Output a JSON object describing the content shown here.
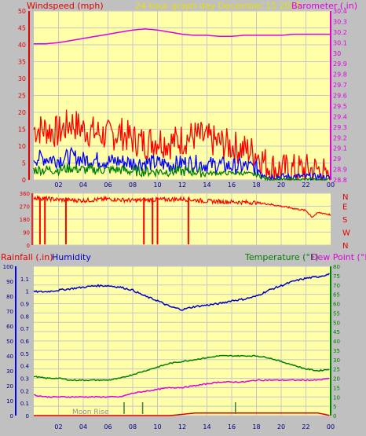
{
  "header": {
    "left": "Windspeed (mph)",
    "center": "24 hour graph day   December 15 2025",
    "right": "Barometer (.in)"
  },
  "colors": {
    "background": "#c0c0c0",
    "plot": "#ffffa8",
    "grid": "#c8c8c8",
    "wind": "#ff0000",
    "wind_avg": "#0000ff",
    "wind_low": "#008000",
    "barometer": "#e000e0",
    "wind_dir": "#ff0000",
    "humidity": "#0000c8",
    "temperature": "#008000",
    "dew_point": "#e000e0",
    "rainfall": "#e00000",
    "solar_ticks": "#408040",
    "header_center": "#e8e000"
  },
  "x_ticks": [
    "02",
    "04",
    "06",
    "08",
    "10",
    "12",
    "14",
    "16",
    "18",
    "20",
    "22",
    "00"
  ],
  "chart_data": [
    {
      "type": "line",
      "name": "wind-barometer",
      "left_axis": {
        "label": "Windspeed (mph)",
        "ticks": [
          "0",
          "5",
          "10",
          "15",
          "20",
          "25",
          "30",
          "35",
          "40",
          "45",
          "50"
        ],
        "range": [
          0,
          50
        ]
      },
      "right_axis": {
        "label": "Barometer (.in)",
        "ticks": [
          "28.8",
          "28.9",
          "29",
          "29.1",
          "29.2",
          "29.3",
          "29.4",
          "29.5",
          "29.6",
          "29.7",
          "29.8",
          "29.9",
          "30",
          "30.1",
          "30.2",
          "30.3",
          "30.4"
        ],
        "range": [
          28.8,
          30.4
        ]
      },
      "x_hours": [
        1,
        2,
        3,
        4,
        5,
        6,
        7,
        8,
        9,
        10,
        11,
        12,
        13,
        14,
        15,
        16,
        17,
        18,
        19,
        20,
        21,
        22,
        23,
        24
      ],
      "series": [
        {
          "key": "gust",
          "axis": "left",
          "values": [
            15,
            14,
            17,
            15,
            14,
            13,
            14,
            12,
            11,
            12,
            11,
            12,
            13,
            12,
            11,
            10,
            9,
            8,
            4,
            3,
            3,
            3,
            3,
            1
          ]
        },
        {
          "key": "avg",
          "axis": "left",
          "values": [
            6.5,
            6,
            7,
            6,
            6,
            5.5,
            5.5,
            5,
            5,
            5,
            4.5,
            5,
            5,
            4.5,
            4.5,
            4,
            4,
            3.5,
            1,
            1,
            1,
            1,
            1,
            0.5
          ]
        },
        {
          "key": "low",
          "axis": "left",
          "values": [
            3,
            3,
            3.5,
            3,
            3,
            3,
            3,
            2.5,
            2.5,
            2.5,
            2.5,
            2.5,
            2.5,
            2,
            2,
            2,
            2,
            1.5,
            0,
            0,
            0,
            0,
            0,
            0
          ]
        },
        {
          "key": "barometer",
          "axis": "right",
          "values": [
            30.09,
            30.1,
            30.12,
            30.14,
            30.16,
            30.18,
            30.2,
            30.22,
            30.23,
            30.22,
            30.2,
            30.18,
            30.17,
            30.17,
            30.16,
            30.16,
            30.17,
            30.17,
            30.17,
            30.17,
            30.18,
            30.18,
            30.18,
            30.18
          ]
        }
      ]
    },
    {
      "type": "scatter",
      "name": "wind-direction",
      "left_axis": {
        "ticks": [
          "0",
          "90",
          "180",
          "270",
          "360"
        ],
        "range": [
          0,
          360
        ]
      },
      "right_labels": [
        "N",
        "W",
        "S",
        "E",
        "N"
      ],
      "x_hours": [
        0,
        2,
        4,
        6,
        8,
        10,
        12,
        14,
        16,
        18,
        19,
        20,
        21,
        22,
        22.5,
        23,
        23.5,
        24
      ],
      "values": [
        330,
        315,
        310,
        320,
        310,
        315,
        320,
        305,
        300,
        295,
        285,
        270,
        255,
        240,
        195,
        225,
        220,
        210
      ],
      "dips_hours": [
        0.5,
        0.9,
        2.6,
        8.9,
        9.6,
        10.0,
        12.5
      ]
    },
    {
      "type": "line",
      "name": "rain-humidity-temperature",
      "header_left": [
        "Rainfall (.in)",
        "Humidity"
      ],
      "header_right": [
        "Temperature (°F)",
        "Dew Point (°F)"
      ],
      "humidity_axis": {
        "ticks": [
          "0",
          "10",
          "20",
          "30",
          "40",
          "50",
          "60",
          "70",
          "80",
          "90",
          "100"
        ],
        "range": [
          0,
          100
        ]
      },
      "rain_axis": {
        "ticks": [
          "0",
          "0.1",
          "0.2",
          "0.3",
          "0.4",
          "0.5",
          "0.6",
          "0.7",
          "0.8",
          "0.9",
          "1",
          "1.1"
        ],
        "range": [
          0,
          1.2
        ]
      },
      "temp_axis": {
        "ticks": [
          "0",
          "5",
          "10",
          "15",
          "20",
          "25",
          "30",
          "35",
          "40",
          "45",
          "50",
          "55",
          "60",
          "65",
          "70",
          "75",
          "80"
        ],
        "range": [
          0,
          80
        ]
      },
      "x_hours": [
        0,
        1,
        2,
        3,
        4,
        5,
        6,
        7,
        8,
        9,
        10,
        11,
        12,
        13,
        14,
        15,
        16,
        17,
        18,
        19,
        20,
        21,
        22,
        23,
        24
      ],
      "series": [
        {
          "key": "humidity",
          "axis": "humidity",
          "values": [
            83,
            83,
            84,
            85,
            86,
            87,
            87,
            86,
            84,
            80,
            77,
            73,
            71,
            73,
            74,
            75,
            77,
            78,
            80,
            84,
            87,
            90,
            92,
            93,
            95
          ]
        },
        {
          "key": "temperature",
          "axis": "temp",
          "values": [
            21,
            20,
            20,
            19,
            19,
            19,
            19,
            20,
            22,
            24,
            26,
            28,
            29,
            30,
            31,
            32,
            32,
            32,
            32,
            31,
            29,
            27,
            25,
            24,
            25
          ]
        },
        {
          "key": "dew_point",
          "axis": "temp",
          "values": [
            11,
            10,
            10,
            10,
            10,
            10,
            10,
            10,
            12,
            13,
            14,
            15,
            15,
            16,
            17,
            18,
            18,
            18,
            19,
            19,
            19,
            19,
            19,
            19,
            20
          ]
        },
        {
          "key": "rainfall",
          "axis": "rain",
          "values": [
            0,
            0,
            0,
            0,
            0,
            0,
            0,
            0,
            0,
            0,
            0,
            0,
            0.01,
            0.02,
            0.02,
            0.02,
            0.02,
            0.02,
            0.02,
            0.02,
            0.02,
            0.02,
            0.02,
            0.02,
            0
          ]
        }
      ],
      "solar_tick_hours": [
        7.3,
        8.8,
        16.3
      ],
      "annotation": "Moon Rise"
    }
  ]
}
